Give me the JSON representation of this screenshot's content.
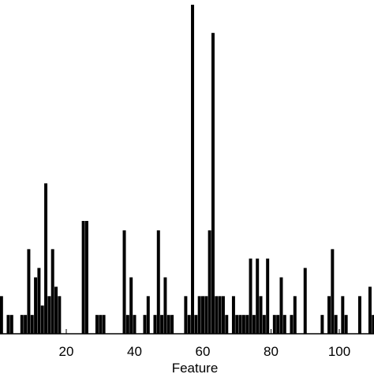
{
  "chart_data": {
    "type": "bar",
    "title": "",
    "xlabel": "Feature",
    "ylabel": "",
    "xlim": [
      -2,
      112
    ],
    "ylim": [
      0,
      35
    ],
    "xticks": [
      20,
      40,
      60,
      80,
      100
    ],
    "grid": false,
    "legend": "none",
    "bar_color": "#000000",
    "values": [
      {
        "x": -2,
        "y": 4
      },
      {
        "x": 0,
        "y": 1
      },
      {
        "x": 1,
        "y": 4
      },
      {
        "x": 3,
        "y": 2
      },
      {
        "x": 4,
        "y": 2
      },
      {
        "x": 7,
        "y": 2
      },
      {
        "x": 8,
        "y": 2
      },
      {
        "x": 9,
        "y": 9
      },
      {
        "x": 10,
        "y": 2
      },
      {
        "x": 11,
        "y": 6
      },
      {
        "x": 12,
        "y": 7
      },
      {
        "x": 13,
        "y": 3
      },
      {
        "x": 14,
        "y": 16
      },
      {
        "x": 15,
        "y": 4
      },
      {
        "x": 16,
        "y": 9
      },
      {
        "x": 17,
        "y": 5
      },
      {
        "x": 18,
        "y": 4
      },
      {
        "x": 25,
        "y": 12
      },
      {
        "x": 26,
        "y": 12
      },
      {
        "x": 29,
        "y": 2
      },
      {
        "x": 30,
        "y": 2
      },
      {
        "x": 31,
        "y": 2
      },
      {
        "x": 37,
        "y": 11
      },
      {
        "x": 38,
        "y": 2
      },
      {
        "x": 39,
        "y": 6
      },
      {
        "x": 40,
        "y": 2
      },
      {
        "x": 43,
        "y": 2
      },
      {
        "x": 44,
        "y": 4
      },
      {
        "x": 46,
        "y": 2
      },
      {
        "x": 47,
        "y": 11
      },
      {
        "x": 48,
        "y": 2
      },
      {
        "x": 49,
        "y": 6
      },
      {
        "x": 50,
        "y": 2
      },
      {
        "x": 51,
        "y": 2
      },
      {
        "x": 55,
        "y": 4
      },
      {
        "x": 56,
        "y": 2
      },
      {
        "x": 57,
        "y": 35
      },
      {
        "x": 58,
        "y": 2
      },
      {
        "x": 59,
        "y": 4
      },
      {
        "x": 60,
        "y": 4
      },
      {
        "x": 61,
        "y": 4
      },
      {
        "x": 62,
        "y": 11
      },
      {
        "x": 63,
        "y": 32
      },
      {
        "x": 64,
        "y": 4
      },
      {
        "x": 65,
        "y": 4
      },
      {
        "x": 66,
        "y": 4
      },
      {
        "x": 67,
        "y": 2
      },
      {
        "x": 69,
        "y": 4
      },
      {
        "x": 70,
        "y": 2
      },
      {
        "x": 71,
        "y": 2
      },
      {
        "x": 72,
        "y": 2
      },
      {
        "x": 73,
        "y": 2
      },
      {
        "x": 74,
        "y": 8
      },
      {
        "x": 75,
        "y": 2
      },
      {
        "x": 76,
        "y": 8
      },
      {
        "x": 77,
        "y": 4
      },
      {
        "x": 78,
        "y": 2
      },
      {
        "x": 79,
        "y": 8
      },
      {
        "x": 81,
        "y": 2
      },
      {
        "x": 82,
        "y": 2
      },
      {
        "x": 83,
        "y": 6
      },
      {
        "x": 84,
        "y": 2
      },
      {
        "x": 86,
        "y": 2
      },
      {
        "x": 87,
        "y": 4
      },
      {
        "x": 90,
        "y": 7
      },
      {
        "x": 95,
        "y": 2
      },
      {
        "x": 97,
        "y": 4
      },
      {
        "x": 98,
        "y": 9
      },
      {
        "x": 99,
        "y": 2
      },
      {
        "x": 101,
        "y": 4
      },
      {
        "x": 102,
        "y": 2
      },
      {
        "x": 106,
        "y": 4
      },
      {
        "x": 109,
        "y": 5
      },
      {
        "x": 110,
        "y": 2
      }
    ]
  }
}
